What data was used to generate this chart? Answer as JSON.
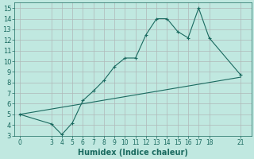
{
  "xlabel": "Humidex (Indice chaleur)",
  "bg_color": "#c0e8e0",
  "grid_color": "#b0b8b8",
  "line_color": "#1a6a60",
  "line1_x": [
    0,
    3,
    4,
    5,
    6,
    7,
    8,
    9,
    10,
    11,
    12,
    13,
    14,
    15,
    16,
    17,
    18,
    21
  ],
  "line1_y": [
    5.0,
    4.1,
    3.1,
    4.2,
    6.3,
    7.2,
    8.2,
    9.5,
    10.3,
    10.3,
    12.5,
    14.0,
    14.0,
    12.8,
    12.2,
    15.0,
    12.2,
    8.7
  ],
  "line2_x": [
    0,
    21
  ],
  "line2_y": [
    5.0,
    8.5
  ],
  "xlim": [
    -0.5,
    22
  ],
  "ylim": [
    3,
    15.5
  ],
  "xticks": [
    0,
    3,
    4,
    5,
    6,
    7,
    8,
    9,
    10,
    11,
    12,
    13,
    14,
    15,
    16,
    17,
    18,
    21
  ],
  "yticks": [
    3,
    4,
    5,
    6,
    7,
    8,
    9,
    10,
    11,
    12,
    13,
    14,
    15
  ],
  "tick_fontsize": 5.5,
  "xlabel_fontsize": 7
}
